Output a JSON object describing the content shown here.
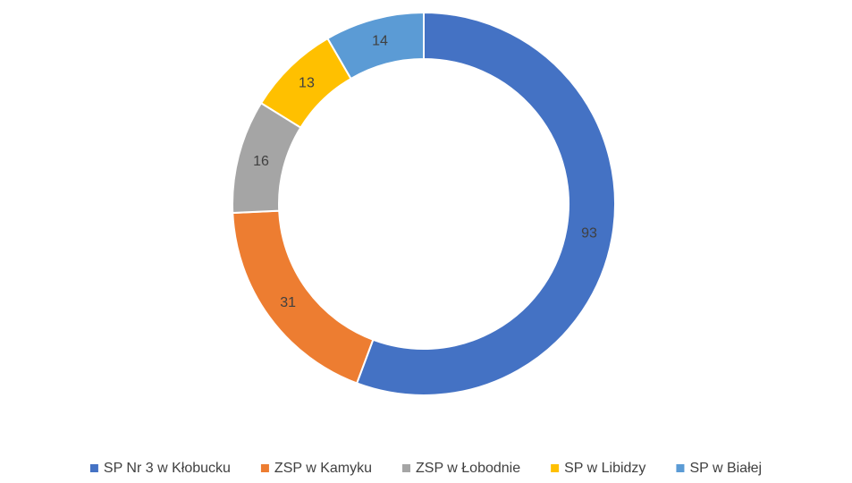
{
  "chart_data": {
    "type": "donut",
    "categories": [
      "SP Nr 3 w Kłobucku",
      "ZSP w Kamyku",
      "ZSP w Łobodnie",
      "SP w Libidzy",
      "SP w Białej"
    ],
    "values": [
      93,
      31,
      16,
      13,
      14
    ],
    "colors": [
      "#4472c4",
      "#ed7d31",
      "#a5a5a5",
      "#ffc000",
      "#5b9bd5"
    ],
    "legend": "bottom"
  }
}
